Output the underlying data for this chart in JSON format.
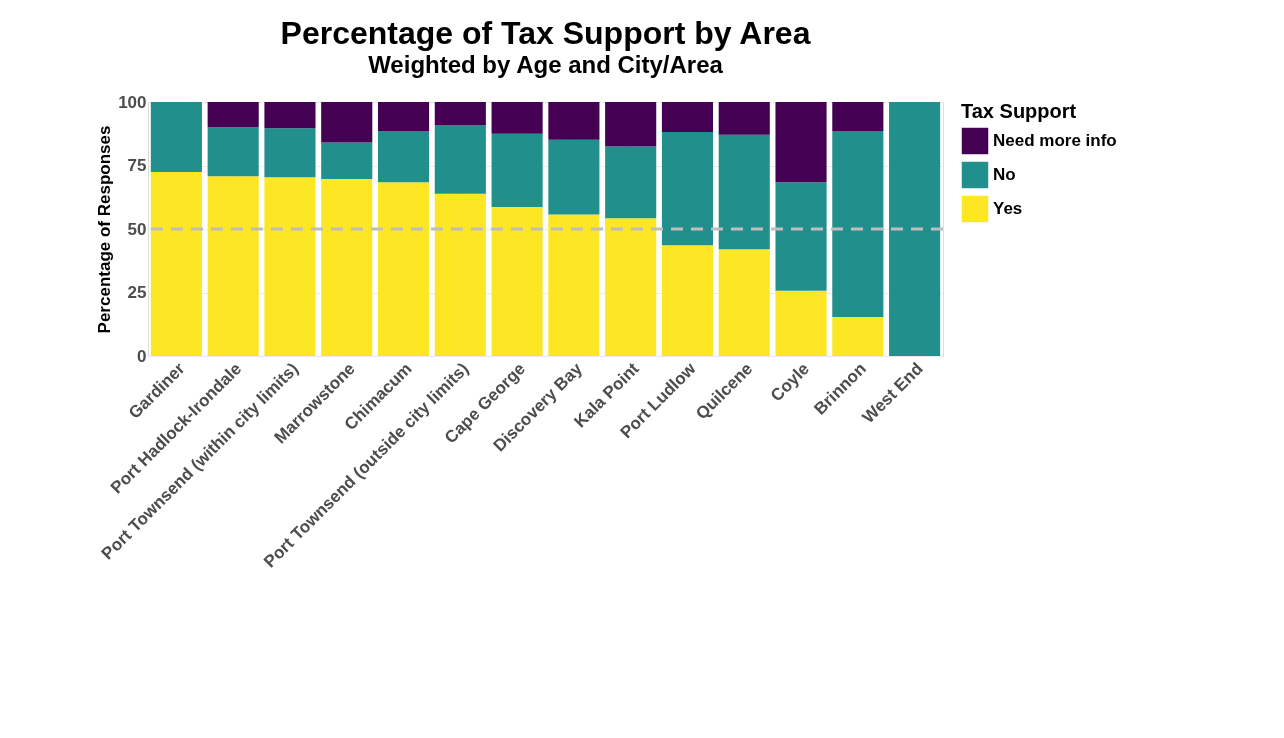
{
  "chart_data": {
    "type": "bar",
    "title": "Percentage of Tax Support by Area",
    "subtitle": "Weighted by Age and City/Area",
    "ylabel": "Percentage of Responses",
    "legend_title": "Tax Support",
    "categories": [
      "Gardiner",
      "Port Hadlock-Irondale",
      "Port Townsend (within city limits)",
      "Marrowstone",
      "Chimacum",
      "Port Townsend (outside city limits)",
      "Cape George",
      "Discovery Bay",
      "Kala Point",
      "Port Ludlow",
      "Quilcene",
      "Coyle",
      "Brinnon",
      "West End"
    ],
    "stacked": true,
    "series": [
      {
        "name": "Yes",
        "color": "#fde725",
        "values": [
          72.4,
          70.8,
          70.4,
          69.7,
          68.4,
          63.9,
          58.7,
          55.7,
          54.2,
          43.6,
          42.0,
          25.7,
          15.4,
          0
        ]
      },
      {
        "name": "No",
        "color": "#21908c",
        "values": [
          27.6,
          19.3,
          19.3,
          14.4,
          20.2,
          27.0,
          28.8,
          29.4,
          28.3,
          44.6,
          45.1,
          42.7,
          73.2,
          100
        ]
      },
      {
        "name": "Need more info",
        "color": "#440154",
        "values": [
          0,
          9.9,
          10.3,
          15.9,
          11.4,
          9.1,
          12.5,
          14.9,
          17.5,
          11.8,
          12.9,
          31.6,
          11.4,
          0
        ]
      }
    ],
    "ylim": [
      0,
      100
    ],
    "yticks": [
      0,
      25,
      50,
      75,
      100
    ],
    "ref_lines": [
      {
        "axis": "y",
        "value": 50,
        "color": "#bebebe",
        "line_style": "dashed"
      }
    ],
    "grid": true,
    "legend": "right"
  }
}
